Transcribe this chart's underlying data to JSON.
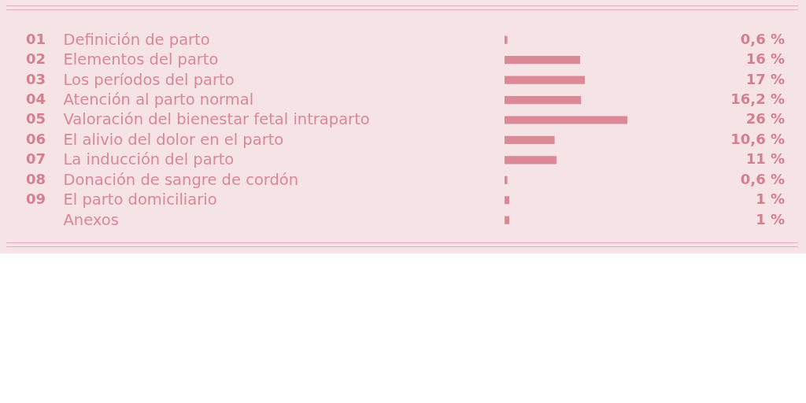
{
  "chart_data": {
    "type": "bar",
    "orientation": "horizontal",
    "categories": [
      "Definición de parto",
      "Elementos del parto",
      "Los períodos del parto",
      "Atención al parto normal",
      "Valoración del bienestar fetal intraparto",
      "El alivio del dolor en el parto",
      "La inducción del parto",
      "Donación de sangre de cordón",
      "El parto domiciliario",
      "Anexos"
    ],
    "values": [
      0.6,
      16,
      17,
      16.2,
      26,
      10.6,
      11,
      0.6,
      1,
      1
    ],
    "value_labels": [
      "0,6 %",
      "16 %",
      "17 %",
      "16,2 %",
      "26 %",
      "10,6 %",
      "11 %",
      "0,6 %",
      "1 %",
      "1 %"
    ],
    "color": "#db8997",
    "annotations": [
      "01",
      "02",
      "03",
      "04",
      "05",
      "06",
      "07",
      "08",
      "09"
    ]
  }
}
